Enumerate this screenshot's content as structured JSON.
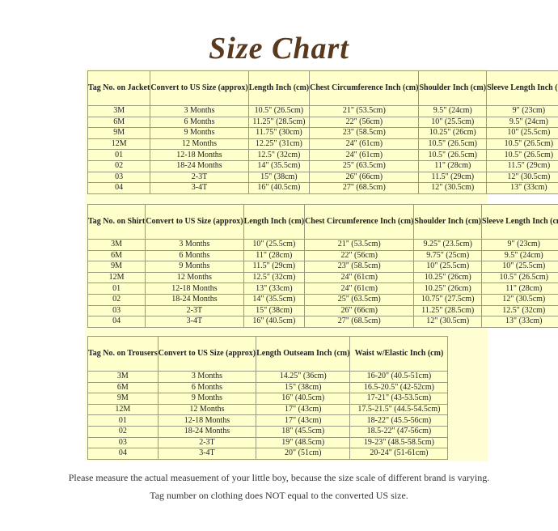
{
  "title": "Size Chart",
  "tables": [
    {
      "headers": [
        "Tag No. on Jacket",
        "Convert to US Size (approx)",
        "Length Inch (cm)",
        "Chest Circumference Inch (cm)",
        "Shoulder Inch (cm)",
        "Sleeve Length Inch (cm)"
      ],
      "rows": [
        [
          "3M",
          "3 Months",
          "10.5\" (26.5cm)",
          "21\" (53.5cm)",
          "9.5\" (24cm)",
          "9\" (23cm)"
        ],
        [
          "6M",
          "6 Months",
          "11.25\" (28.5cm)",
          "22\" (56cm)",
          "10\" (25.5cm)",
          "9.5\" (24cm)"
        ],
        [
          "9M",
          "9 Months",
          "11.75\" (30cm)",
          "23\" (58.5cm)",
          "10.25\" (26cm)",
          "10\" (25.5cm)"
        ],
        [
          "12M",
          "12 Months",
          "12.25\" (31cm)",
          "24\" (61cm)",
          "10.5\" (26.5cm)",
          "10.5\" (26.5cm)"
        ],
        [
          "01",
          "12-18 Months",
          "12.5\" (32cm)",
          "24\" (61cm)",
          "10.5\" (26.5cm)",
          "10.5\" (26.5cm)"
        ],
        [
          "02",
          "18-24 Months",
          "14\" (35.5cm)",
          "25\" (63.5cm)",
          "11\" (28cm)",
          "11.5\" (29cm)"
        ],
        [
          "03",
          "2-3T",
          "15\" (38cm)",
          "26\" (66cm)",
          "11.5\" (29cm)",
          "12\" (30.5cm)"
        ],
        [
          "04",
          "3-4T",
          "16\" (40.5cm)",
          "27\" (68.5cm)",
          "12\" (30.5cm)",
          "13\" (33cm)"
        ]
      ]
    },
    {
      "headers": [
        "Tag No. on Shirt",
        "Convert to US Size (approx)",
        "Length Inch (cm)",
        "Chest Circumference Inch (cm)",
        "Shoulder Inch (cm)",
        "Sleeve Length Inch (cm)"
      ],
      "rows": [
        [
          "3M",
          "3 Months",
          "10\" (25.5cm)",
          "21\" (53.5cm)",
          "9.25\" (23.5cm)",
          "9\" (23cm)"
        ],
        [
          "6M",
          "6 Months",
          "11\" (28cm)",
          "22\" (56cm)",
          "9.75\" (25cm)",
          "9.5\" (24cm)"
        ],
        [
          "9M",
          "9 Months",
          "11.5\" (29cm)",
          "23\" (58.5cm)",
          "10\" (25.5cm)",
          "10\" (25.5cm)"
        ],
        [
          "12M",
          "12 Months",
          "12.5\" (32cm)",
          "24\" (61cm)",
          "10.25\" (26cm)",
          "10.5\" (26.5cm)"
        ],
        [
          "01",
          "12-18 Months",
          "13\" (33cm)",
          "24\" (61cm)",
          "10.25\" (26cm)",
          "11\" (28cm)"
        ],
        [
          "02",
          "18-24 Months",
          "14\" (35.5cm)",
          "25\" (63.5cm)",
          "10.75\" (27.5cm)",
          "12\" (30.5cm)"
        ],
        [
          "03",
          "2-3T",
          "15\" (38cm)",
          "26\" (66cm)",
          "11.25\" (28.5cm)",
          "12.5\" (32cm)"
        ],
        [
          "04",
          "3-4T",
          "16\" (40.5cm)",
          "27\" (68.5cm)",
          "12\" (30.5cm)",
          "13\" (33cm)"
        ]
      ]
    },
    {
      "headers": [
        "Tag No. on Trousers",
        "Convert to US Size (approx)",
        "Length Outseam Inch (cm)",
        "Waist w/Elastic Inch (cm)"
      ],
      "rows": [
        [
          "3M",
          "3 Months",
          "14.25\" (36cm)",
          "16-20\" (40.5-51cm)"
        ],
        [
          "6M",
          "6 Months",
          "15\" (38cm)",
          "16.5-20.5\" (42-52cm)"
        ],
        [
          "9M",
          "9 Months",
          "16\" (40.5cm)",
          "17-21\" (43-53.5cm)"
        ],
        [
          "12M",
          "12 Months",
          "17\" (43cm)",
          "17.5-21.5\" (44.5-54.5cm)"
        ],
        [
          "01",
          "12-18 Months",
          "17\" (43cm)",
          "18-22\" (45.5-56cm)"
        ],
        [
          "02",
          "18-24 Months",
          "18\" (45.5cm)",
          "18.5-22\" (47-56cm)"
        ],
        [
          "03",
          "2-3T",
          "19\" (48.5cm)",
          "19-23\" (48.5-58.5cm)"
        ],
        [
          "04",
          "3-4T",
          "20\" (51cm)",
          "20-24\" (51-61cm)"
        ]
      ]
    }
  ],
  "notes": [
    "Please measure the actual measuement of your little boy, because the size scale of different brand is varying.",
    "Tag number on clothing does NOT equal to the converted US size."
  ],
  "colors": {
    "title": "#5a3a1e",
    "panel": "#fefed2",
    "cell": "#ffffcc",
    "border": "#9a9a80"
  }
}
